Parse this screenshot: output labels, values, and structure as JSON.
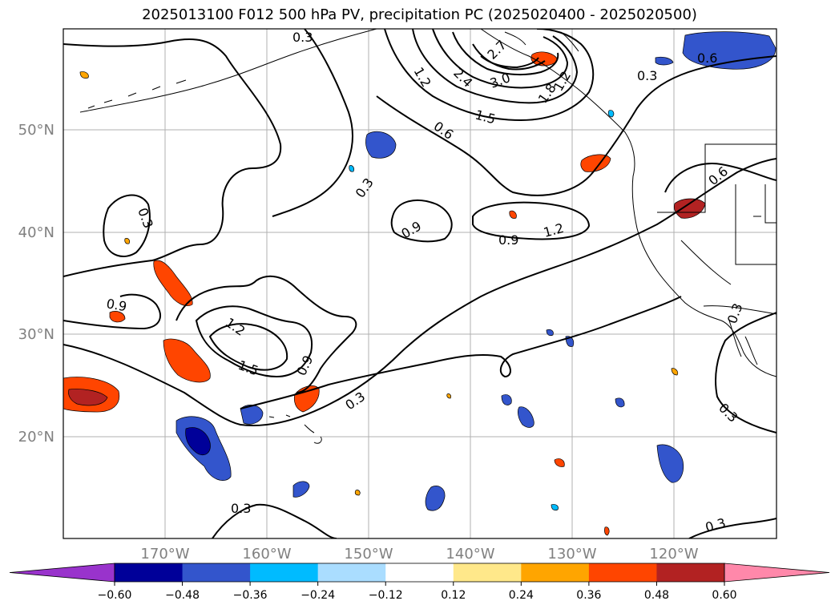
{
  "title": "2025013100 F012 500 hPa PV, precipitation PC (2025020400 - 2025020500)",
  "lat_labels": [
    "50°N",
    "40°N",
    "30°N",
    "20°N"
  ],
  "lon_labels": [
    "170°W",
    "160°W",
    "150°W",
    "140°W",
    "130°W",
    "120°W"
  ],
  "contour_labels": [
    "0.3",
    "0.3",
    "0.3",
    "0.3",
    "0.3",
    "0.3",
    "0.3",
    "0.3",
    "0.3",
    "0.6",
    "0.6",
    "0.6",
    "0.9",
    "0.9",
    "0.9",
    "0.9",
    "1.2",
    "1.2",
    "1.2",
    "1.2",
    "1.5",
    "1.5",
    "1.8",
    "2.4",
    "2.7",
    "3.0"
  ],
  "colorbar": {
    "ticks": [
      "−0.60",
      "−0.48",
      "−0.36",
      "−0.24",
      "−0.12",
      "0.12",
      "0.24",
      "0.36",
      "0.48",
      "0.60"
    ],
    "colors": [
      "#9933cc",
      "#000099",
      "#3355cc",
      "#00bbff",
      "#aaddff",
      "#ffffff",
      "#ffe88a",
      "#ffa500",
      "#ff4500",
      "#b22222",
      "#ff88aa"
    ]
  }
}
